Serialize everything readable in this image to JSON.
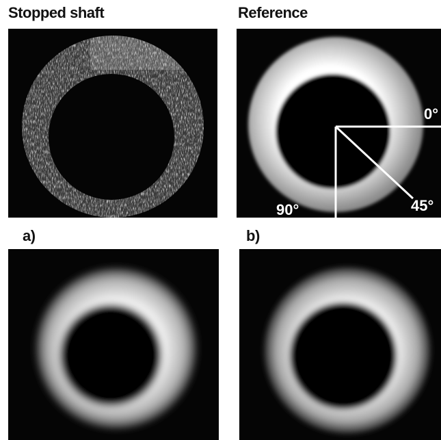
{
  "labels": {
    "top_left": "Stopped shaft",
    "top_right": "Reference",
    "bottom_left": "a)",
    "bottom_right": "b)"
  },
  "angles": {
    "a0": "0°",
    "a45": "45°",
    "a90": "90°"
  },
  "colors": {
    "background": "#050505",
    "ring": "#d8d8d8",
    "overlay": "#ffffff"
  }
}
